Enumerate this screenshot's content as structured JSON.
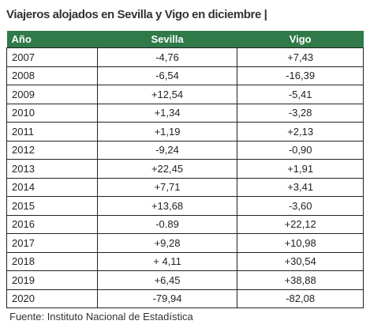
{
  "header": {
    "title": "Viajeros alojados en Sevilla y Vigo en diciembre |"
  },
  "table": {
    "columns": [
      "Año",
      "Sevilla",
      "Vigo"
    ],
    "rows": [
      [
        "2007",
        "-4,76",
        "+7,43"
      ],
      [
        "2008",
        "-6,54",
        "-16,39"
      ],
      [
        "2009",
        "+12,54",
        "-5,41"
      ],
      [
        "2010",
        "+1,34",
        "-3,28"
      ],
      [
        "2011",
        "+1,19",
        "+2,13"
      ],
      [
        "2012",
        "-9,24",
        "-0,90"
      ],
      [
        "2013",
        "+22,45",
        "+1,91"
      ],
      [
        "2014",
        "+7,71",
        "+3,41"
      ],
      [
        "2015",
        "+13,68",
        "-3,60"
      ],
      [
        "2016",
        "-0.89",
        "+22,12"
      ],
      [
        "2017",
        "+9,28",
        "+10,98"
      ],
      [
        "2018",
        "+ 4,11",
        "+30,54"
      ],
      [
        "2019",
        "+6,45",
        "+38,88"
      ],
      [
        "2020",
        "-79,94",
        "-82,08"
      ]
    ]
  },
  "footer": {
    "source": "Fuente: Instituto Nacional de Estadística"
  }
}
